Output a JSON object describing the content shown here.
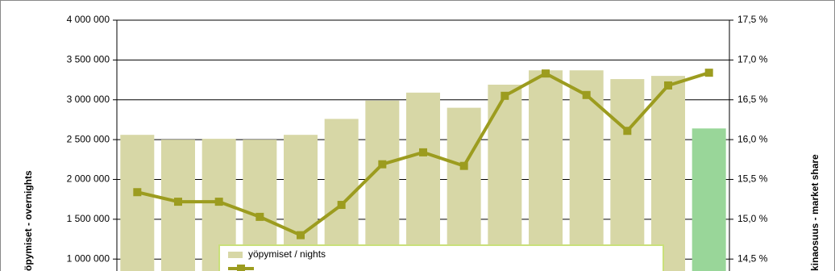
{
  "chart_data": {
    "type": "bar",
    "categories": [
      null,
      null,
      null,
      null,
      null,
      null,
      null,
      null,
      null,
      null,
      null,
      null,
      null,
      null,
      null
    ],
    "series": [
      {
        "name": "yöpymiset / nights",
        "type": "bar",
        "color": "#d7d7a6",
        "colors": [
          "#d7d7a6",
          "#d7d7a6",
          "#d7d7a6",
          "#d7d7a6",
          "#d7d7a6",
          "#d7d7a6",
          "#d7d7a6",
          "#d7d7a6",
          "#d7d7a6",
          "#d7d7a6",
          "#d7d7a6",
          "#d7d7a6",
          "#d7d7a6",
          "#d7d7a6",
          "#99d699"
        ],
        "values": [
          2560000,
          2500000,
          2510000,
          2500000,
          2560000,
          2760000,
          2990000,
          3090000,
          2900000,
          3190000,
          3370000,
          3370000,
          3260000,
          3300000,
          2640000
        ]
      },
      {
        "type": "line",
        "axis": "y2",
        "color": "#9c9c1f",
        "values": [
          15.34,
          15.22,
          15.22,
          15.03,
          14.8,
          15.18,
          15.69,
          15.84,
          15.67,
          16.55,
          16.83,
          16.56,
          16.11,
          16.68,
          16.84
        ]
      }
    ],
    "ylabel": "öpymiset - overnights",
    "y2label": "kinaosuus - market share",
    "ylim": [
      850000,
      4000000
    ],
    "yticks": [
      {
        "value": 1000000,
        "label": "1 000 000"
      },
      {
        "value": 1500000,
        "label": "1 500 000"
      },
      {
        "value": 2000000,
        "label": "2 000 000"
      },
      {
        "value": 2500000,
        "label": "2 500 000"
      },
      {
        "value": 3000000,
        "label": "3 000 000"
      },
      {
        "value": 3500000,
        "label": "3 500 000"
      },
      {
        "value": 4000000,
        "label": "4 000 000"
      }
    ],
    "y2lim": [
      14.35,
      17.5
    ],
    "y2ticks": [
      {
        "value": 14.5,
        "label": "14,5 %"
      },
      {
        "value": 15,
        "label": "15,0 %"
      },
      {
        "value": 15.5,
        "label": "15,5 %"
      },
      {
        "value": 16,
        "label": "16,0 %"
      },
      {
        "value": 16.5,
        "label": "16,5 %"
      },
      {
        "value": 17,
        "label": "17,0 %"
      },
      {
        "value": 17.5,
        "label": "17,5 %"
      }
    ],
    "grid": true,
    "legend": "bottom"
  }
}
